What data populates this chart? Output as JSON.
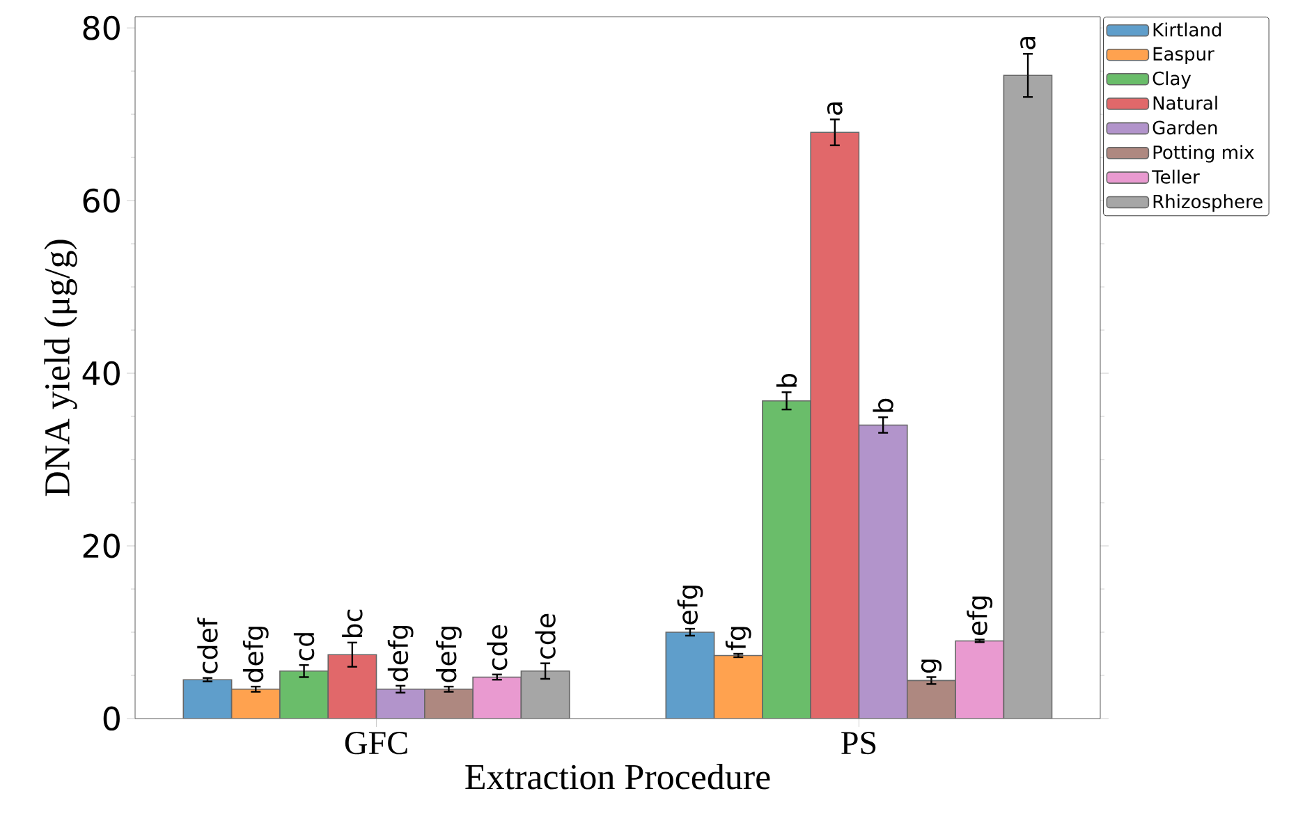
{
  "chart_data": {
    "type": "bar",
    "xlabel": "Extraction Procedure",
    "ylabel": "DNA yield (μg/g)",
    "categories": [
      "GFC",
      "PS"
    ],
    "ylim": [
      0,
      81.3
    ],
    "yticks": [
      0,
      20,
      40,
      60,
      80
    ],
    "legend": "top right",
    "series": [
      {
        "name": "Kirtland",
        "color": "#5f9ecb",
        "values": [
          4.5,
          10.0
        ],
        "errors": [
          0.2,
          0.4
        ],
        "value_labels": [
          "cdef",
          "efg"
        ]
      },
      {
        "name": "Easpur",
        "color": "#ffa24f",
        "values": [
          3.4,
          7.3
        ],
        "errors": [
          0.3,
          0.2
        ],
        "value_labels": [
          "defg",
          "fg"
        ]
      },
      {
        "name": "Clay",
        "color": "#6abd6a",
        "values": [
          5.5,
          36.8
        ],
        "errors": [
          0.7,
          1.0
        ],
        "value_labels": [
          "cd",
          "b"
        ]
      },
      {
        "name": "Natural",
        "color": "#e1686a",
        "values": [
          7.4,
          67.9
        ],
        "errors": [
          1.4,
          1.5
        ],
        "value_labels": [
          "bc",
          "a"
        ]
      },
      {
        "name": "Garden",
        "color": "#b294cb",
        "values": [
          3.4,
          34.0
        ],
        "errors": [
          0.4,
          0.9
        ],
        "value_labels": [
          "defg",
          "b"
        ]
      },
      {
        "name": "Potting mix",
        "color": "#ae8880",
        "values": [
          3.4,
          4.4
        ],
        "errors": [
          0.3,
          0.4
        ],
        "value_labels": [
          "defg",
          "g"
        ]
      },
      {
        "name": "Teller",
        "color": "#e99ad0",
        "values": [
          4.8,
          9.0
        ],
        "errors": [
          0.3,
          0.15
        ],
        "value_labels": [
          "cde",
          "efg"
        ]
      },
      {
        "name": "Rhizosphere",
        "color": "#a6a6a6",
        "values": [
          5.5,
          74.5
        ],
        "errors": [
          0.9,
          2.5
        ],
        "value_labels": [
          "cde",
          "a"
        ]
      }
    ]
  }
}
